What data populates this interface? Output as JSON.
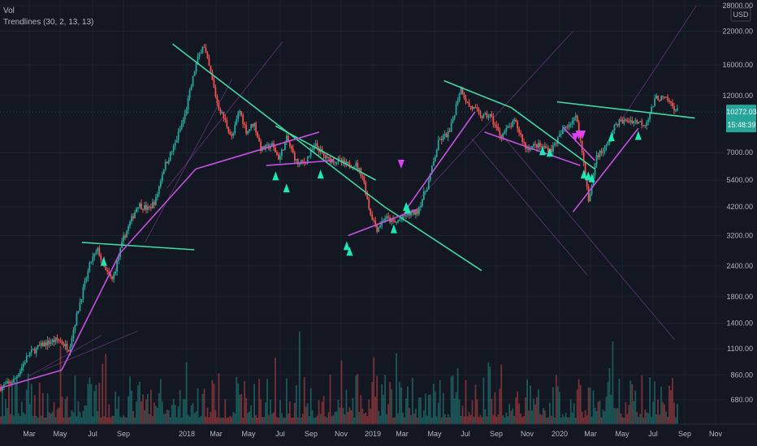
{
  "indicators": {
    "vol_label": "Vol",
    "trend_label": "Trendlines (30, 2, 13, 13)"
  },
  "chart_data": {
    "type": "candlestick",
    "currency": "USD",
    "y_scale": "log",
    "ylim": [
      600,
      28000
    ],
    "y_ticks": [
      "28000.00",
      "22000.00",
      "16000.00",
      "12000.00",
      "7000.00",
      "5400.00",
      "4200.00",
      "3200.00",
      "2400.00",
      "1800.00",
      "1400.00",
      "1100.00",
      "860.00",
      "680.00"
    ],
    "x_ticks": [
      "Mar",
      "May",
      "Jul",
      "Sep",
      "2018",
      "Mar",
      "May",
      "Jul",
      "Sep",
      "Nov",
      "2019",
      "Mar",
      "May",
      "Jul",
      "Sep",
      "Nov",
      "2020",
      "Mar",
      "May",
      "Jul",
      "Sep",
      "Nov"
    ],
    "last_price": "10272.03",
    "countdown": "15:48:39",
    "colors": {
      "background": "#131722",
      "grid": "#1e222d",
      "up_candle": "#26a69a",
      "down_candle": "#ef5350",
      "resistance_line": "#3fd9a0",
      "support_line": "#c451e0",
      "arrow_up": "#1de9b6",
      "arrow_down": "#e040fb",
      "price_tag": "#26a69a"
    },
    "price_path": [
      [
        0.0,
        760
      ],
      [
        0.02,
        820
      ],
      [
        0.04,
        1050
      ],
      [
        0.06,
        1150
      ],
      [
        0.08,
        1200
      ],
      [
        0.095,
        1100
      ],
      [
        0.11,
        1700
      ],
      [
        0.125,
        2500
      ],
      [
        0.135,
        2800
      ],
      [
        0.145,
        2300
      ],
      [
        0.155,
        2100
      ],
      [
        0.17,
        3100
      ],
      [
        0.19,
        4300
      ],
      [
        0.205,
        4100
      ],
      [
        0.215,
        4500
      ],
      [
        0.225,
        6000
      ],
      [
        0.24,
        7400
      ],
      [
        0.255,
        10000
      ],
      [
        0.27,
        16000
      ],
      [
        0.28,
        19500
      ],
      [
        0.29,
        15000
      ],
      [
        0.3,
        11000
      ],
      [
        0.31,
        9500
      ],
      [
        0.32,
        8000
      ],
      [
        0.33,
        10500
      ],
      [
        0.34,
        8500
      ],
      [
        0.35,
        9300
      ],
      [
        0.36,
        7200
      ],
      [
        0.375,
        7500
      ],
      [
        0.385,
        6600
      ],
      [
        0.395,
        8000
      ],
      [
        0.41,
        6300
      ],
      [
        0.42,
        6400
      ],
      [
        0.435,
        7500
      ],
      [
        0.45,
        6600
      ],
      [
        0.465,
        6500
      ],
      [
        0.48,
        6200
      ],
      [
        0.49,
        6300
      ],
      [
        0.5,
        5600
      ],
      [
        0.51,
        4000
      ],
      [
        0.52,
        3400
      ],
      [
        0.53,
        3800
      ],
      [
        0.545,
        3600
      ],
      [
        0.56,
        3900
      ],
      [
        0.575,
        4000
      ],
      [
        0.59,
        5200
      ],
      [
        0.605,
        7800
      ],
      [
        0.62,
        8500
      ],
      [
        0.635,
        13000
      ],
      [
        0.645,
        11000
      ],
      [
        0.655,
        10500
      ],
      [
        0.665,
        9800
      ],
      [
        0.675,
        10000
      ],
      [
        0.69,
        8200
      ],
      [
        0.71,
        9400
      ],
      [
        0.725,
        7300
      ],
      [
        0.74,
        7500
      ],
      [
        0.76,
        7200
      ],
      [
        0.78,
        9000
      ],
      [
        0.795,
        9800
      ],
      [
        0.805,
        6300
      ],
      [
        0.812,
        4300
      ],
      [
        0.822,
        6800
      ],
      [
        0.835,
        7300
      ],
      [
        0.85,
        9300
      ],
      [
        0.87,
        9500
      ],
      [
        0.89,
        9200
      ],
      [
        0.905,
        11800
      ],
      [
        0.92,
        11500
      ],
      [
        0.935,
        10272
      ]
    ],
    "trendlines": [
      {
        "color": "resistance",
        "x1": 0.113,
        "y1": 3000,
        "x2": 0.268,
        "y2": 2800
      },
      {
        "color": "resistance",
        "x1": 0.238,
        "y1": 19500,
        "x2": 0.53,
        "y2": 4200
      },
      {
        "color": "resistance",
        "x1": 0.53,
        "y1": 4200,
        "x2": 0.664,
        "y2": 2300
      },
      {
        "color": "resistance",
        "x1": 0.38,
        "y1": 9000,
        "x2": 0.518,
        "y2": 5400
      },
      {
        "color": "resistance",
        "x1": 0.612,
        "y1": 13800,
        "x2": 0.705,
        "y2": 10700
      },
      {
        "color": "resistance",
        "x1": 0.705,
        "y1": 10700,
        "x2": 0.82,
        "y2": 6000
      },
      {
        "color": "resistance",
        "x1": 0.768,
        "y1": 11300,
        "x2": 0.958,
        "y2": 9700
      },
      {
        "color": "support",
        "x1": 0.0,
        "y1": 760,
        "x2": 0.085,
        "y2": 900
      },
      {
        "color": "support",
        "x1": 0.085,
        "y1": 900,
        "x2": 0.165,
        "y2": 2700
      },
      {
        "color": "support",
        "x1": 0.165,
        "y1": 2700,
        "x2": 0.27,
        "y2": 6000
      },
      {
        "color": "support",
        "x1": 0.27,
        "y1": 6000,
        "x2": 0.44,
        "y2": 8500
      },
      {
        "color": "support",
        "x1": 0.367,
        "y1": 6200,
        "x2": 0.46,
        "y2": 6500
      },
      {
        "color": "support",
        "x1": 0.48,
        "y1": 3200,
        "x2": 0.575,
        "y2": 4100
      },
      {
        "color": "support",
        "x1": 0.56,
        "y1": 4100,
        "x2": 0.655,
        "y2": 10300
      },
      {
        "color": "support",
        "x1": 0.668,
        "y1": 8500,
        "x2": 0.8,
        "y2": 6200
      },
      {
        "color": "support",
        "x1": 0.79,
        "y1": 4000,
        "x2": 0.88,
        "y2": 8800
      },
      {
        "color": "support",
        "x1": 0.776,
        "y1": 8900,
        "x2": 0.82,
        "y2": 6500
      }
    ],
    "faint_lines": [
      {
        "x1": 0.06,
        "y1": 900,
        "x2": 0.19,
        "y2": 1300
      },
      {
        "x1": 0.04,
        "y1": 850,
        "x2": 0.14,
        "y2": 1250
      },
      {
        "x1": 0.2,
        "y1": 3000,
        "x2": 0.32,
        "y2": 14000
      },
      {
        "x1": 0.23,
        "y1": 5000,
        "x2": 0.39,
        "y2": 20000
      },
      {
        "x1": 0.65,
        "y1": 8000,
        "x2": 0.81,
        "y2": 2200
      },
      {
        "x1": 0.69,
        "y1": 8400,
        "x2": 0.93,
        "y2": 1200
      },
      {
        "x1": 0.58,
        "y1": 4600,
        "x2": 0.79,
        "y2": 22000
      },
      {
        "x1": 0.84,
        "y1": 8000,
        "x2": 0.96,
        "y2": 28000
      }
    ],
    "arrows_up": [
      [
        0.143,
        2500
      ],
      [
        0.38,
        5600
      ],
      [
        0.395,
        5000
      ],
      [
        0.442,
        5700
      ],
      [
        0.478,
        2900
      ],
      [
        0.482,
        2750
      ],
      [
        0.543,
        3400
      ],
      [
        0.56,
        4200
      ],
      [
        0.562,
        4100
      ],
      [
        0.748,
        7100
      ],
      [
        0.758,
        7000
      ],
      [
        0.805,
        5700
      ],
      [
        0.811,
        5600
      ],
      [
        0.816,
        5500
      ],
      [
        0.843,
        8100
      ],
      [
        0.88,
        8200
      ]
    ],
    "arrows_down": [
      [
        0.553,
        6300
      ],
      [
        0.793,
        8100
      ],
      [
        0.798,
        8300
      ],
      [
        0.803,
        8300
      ]
    ]
  }
}
